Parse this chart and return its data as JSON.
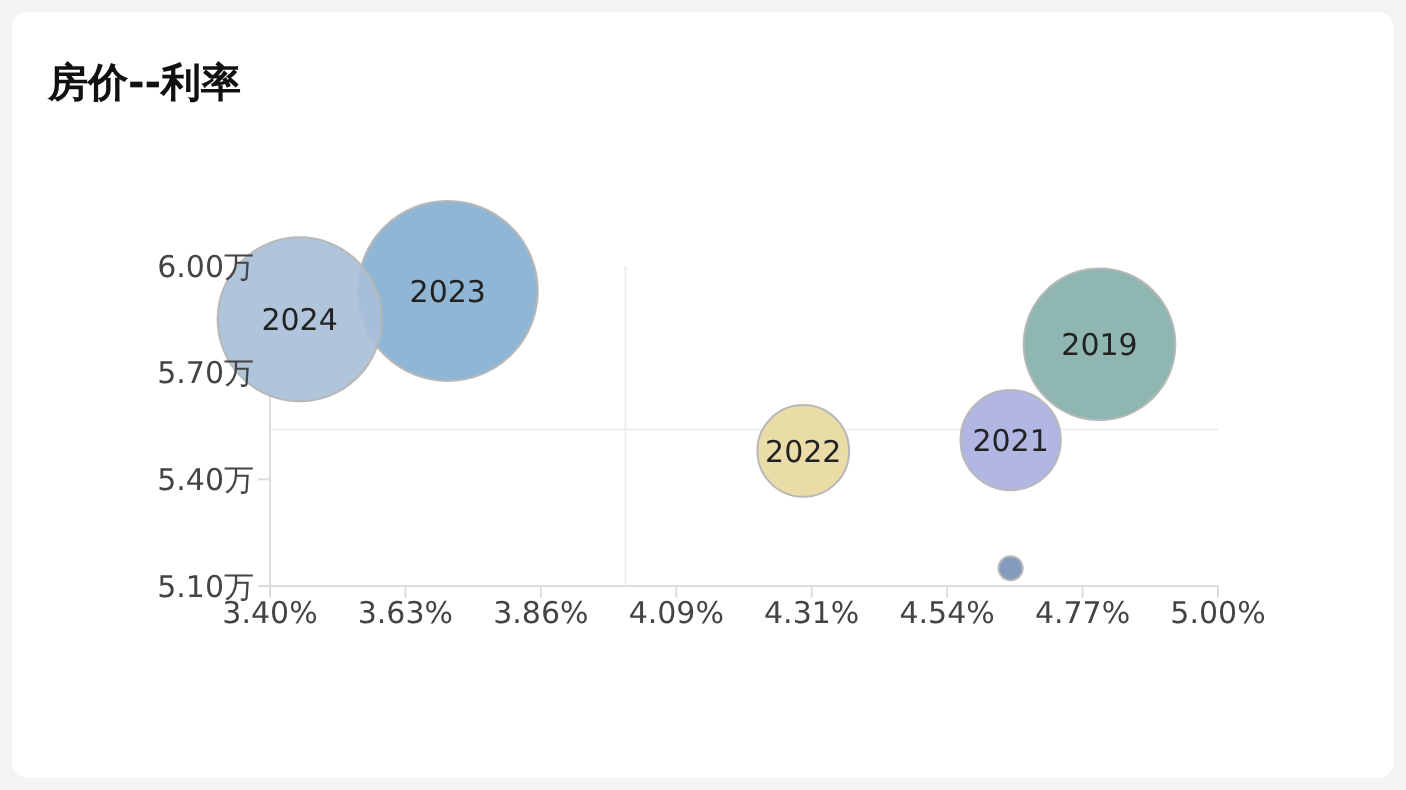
{
  "chart_data": {
    "type": "bubble",
    "title": "房价--利率",
    "x": [
      4.8,
      4.65,
      4.65,
      4.3,
      3.7,
      3.45
    ],
    "values": [
      5.78,
      5.15,
      5.51,
      5.48,
      5.93,
      5.85
    ],
    "sizes": [
      0.71,
      0.018,
      0.31,
      0.26,
      1,
      0.83
    ],
    "colors": [
      "#87b0ab",
      "#7b93b8",
      "#aab0e0",
      "#e8d9a0",
      "#86b0d0",
      "#a9bfd9"
    ],
    "annotations": [
      {
        "text": "2019",
        "x": 4.8,
        "y": 5.78
      },
      {
        "text": "2021",
        "x": 4.65,
        "y": 5.51
      },
      {
        "text": "2022",
        "x": 4.3,
        "y": 5.48
      },
      {
        "text": "2023",
        "x": 3.7,
        "y": 5.93
      },
      {
        "text": "2024",
        "x": 3.45,
        "y": 5.85
      }
    ],
    "xlim": [
      3.4,
      5.0
    ],
    "xticks": [
      {
        "value": 3.4,
        "label": "3.40%"
      },
      {
        "value": 3.6285714,
        "label": "3.63%"
      },
      {
        "value": 3.8571429,
        "label": "3.86%"
      },
      {
        "value": 4.0857143,
        "label": "4.09%"
      },
      {
        "value": 4.3142857,
        "label": "4.31%"
      },
      {
        "value": 4.5428571,
        "label": "4.54%"
      },
      {
        "value": 4.7714286,
        "label": "4.77%"
      },
      {
        "value": 5.0,
        "label": "5.00%"
      }
    ],
    "ylim": [
      5.1,
      6.0
    ],
    "yticks": [
      {
        "value": 5.1,
        "label": "5.10万"
      },
      {
        "value": 5.4,
        "label": "5.40万"
      },
      {
        "value": 5.7,
        "label": "5.70万"
      },
      {
        "value": 6.0,
        "label": "6.00万"
      }
    ],
    "ref_lines": [
      {
        "axis": "x",
        "value": 4.0,
        "color": "#eeeeee"
      },
      {
        "axis": "y",
        "value": 5.54,
        "color": "#eeeeee"
      }
    ]
  }
}
